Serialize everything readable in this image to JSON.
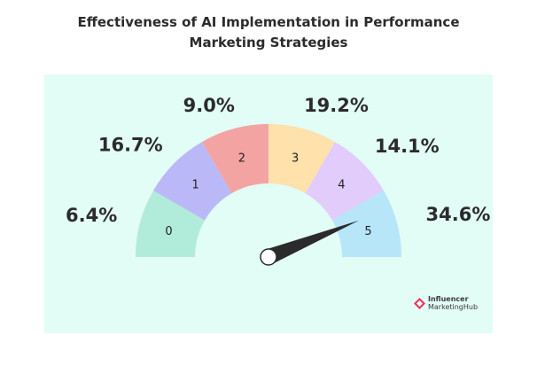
{
  "title_line1": "Effectiveness of AI Implementation in Performance",
  "title_line2": "Marketing Strategies",
  "colors": {
    "panel": "#e2fcf6",
    "segments": [
      "#b0ecd9",
      "#bab8f7",
      "#f4a3a3",
      "#ffe1ac",
      "#e1ccfb",
      "#b6e6f8"
    ],
    "needle": "#2b2b2b"
  },
  "chart_data": {
    "type": "gauge",
    "categories": [
      "0",
      "1",
      "2",
      "3",
      "4",
      "5"
    ],
    "values": [
      6.4,
      16.7,
      9.0,
      19.2,
      14.1,
      34.6
    ],
    "value_labels": [
      "6.4%",
      "16.7%",
      "9.0%",
      "19.2%",
      "14.1%",
      "34.6%"
    ],
    "needle_points_to": "5"
  },
  "logo": {
    "line1": "Influencer",
    "line2": "MarketingHub"
  }
}
